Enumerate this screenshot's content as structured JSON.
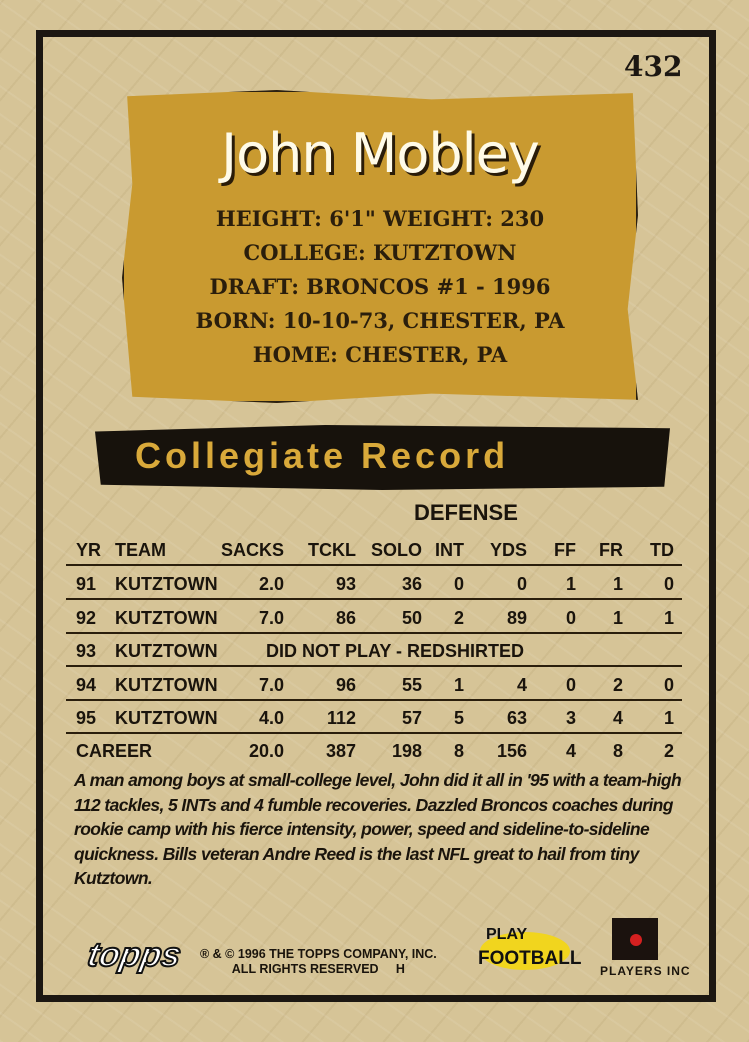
{
  "card_number": "432",
  "player": {
    "name": "John Mobley",
    "info": [
      "HEIGHT: 6'1\"  WEIGHT: 230",
      "COLLEGE: KUTZTOWN",
      "DRAFT: BRONCOS #1 - 1996",
      "BORN: 10-10-73, CHESTER, PA",
      "HOME: CHESTER, PA"
    ]
  },
  "section_title": "Collegiate Record",
  "table": {
    "group_header": "DEFENSE",
    "headers": [
      "YR",
      "TEAM",
      "SACKS",
      "TCKL",
      "SOLO",
      "INT",
      "YDS",
      "FF",
      "FR",
      "TD"
    ],
    "rows": [
      [
        "91",
        "KUTZTOWN",
        "2.0",
        "93",
        "36",
        "0",
        "0",
        "1",
        "1",
        "0"
      ],
      [
        "92",
        "KUTZTOWN",
        "7.0",
        "86",
        "50",
        "2",
        "89",
        "0",
        "1",
        "1"
      ],
      [
        "93",
        "KUTZTOWN",
        "DID NOT PLAY - REDSHIRTED"
      ],
      [
        "94",
        "KUTZTOWN",
        "7.0",
        "96",
        "55",
        "1",
        "4",
        "0",
        "2",
        "0"
      ],
      [
        "95",
        "KUTZTOWN",
        "4.0",
        "112",
        "57",
        "5",
        "63",
        "3",
        "4",
        "1"
      ]
    ],
    "career": [
      "CAREER",
      "20.0",
      "387",
      "198",
      "8",
      "156",
      "4",
      "8",
      "2"
    ]
  },
  "bio": "A man among boys at small-college level, John did it all in '95 with a team-high 112 tackles, 5 INTs and 4 fumble recoveries. Dazzled Broncos coaches during rookie camp with his fierce intensity, power, speed and sideline-to-sideline quickness. Bills veteran Andre Reed is the last NFL great to hail from tiny Kutztown.",
  "footer": {
    "brand": "topps",
    "copyright_1": "® & © 1996 THE TOPPS COMPANY, INC.",
    "copyright_2": "ALL RIGHTS RESERVED     H",
    "play_football": "PLAY FOOTBALL",
    "players": "PLAYERS INC"
  },
  "colors": {
    "card": "#d6c497",
    "gold_box": "#c99a30",
    "banner": "#17120c",
    "banner_text": "#d9a93a"
  }
}
